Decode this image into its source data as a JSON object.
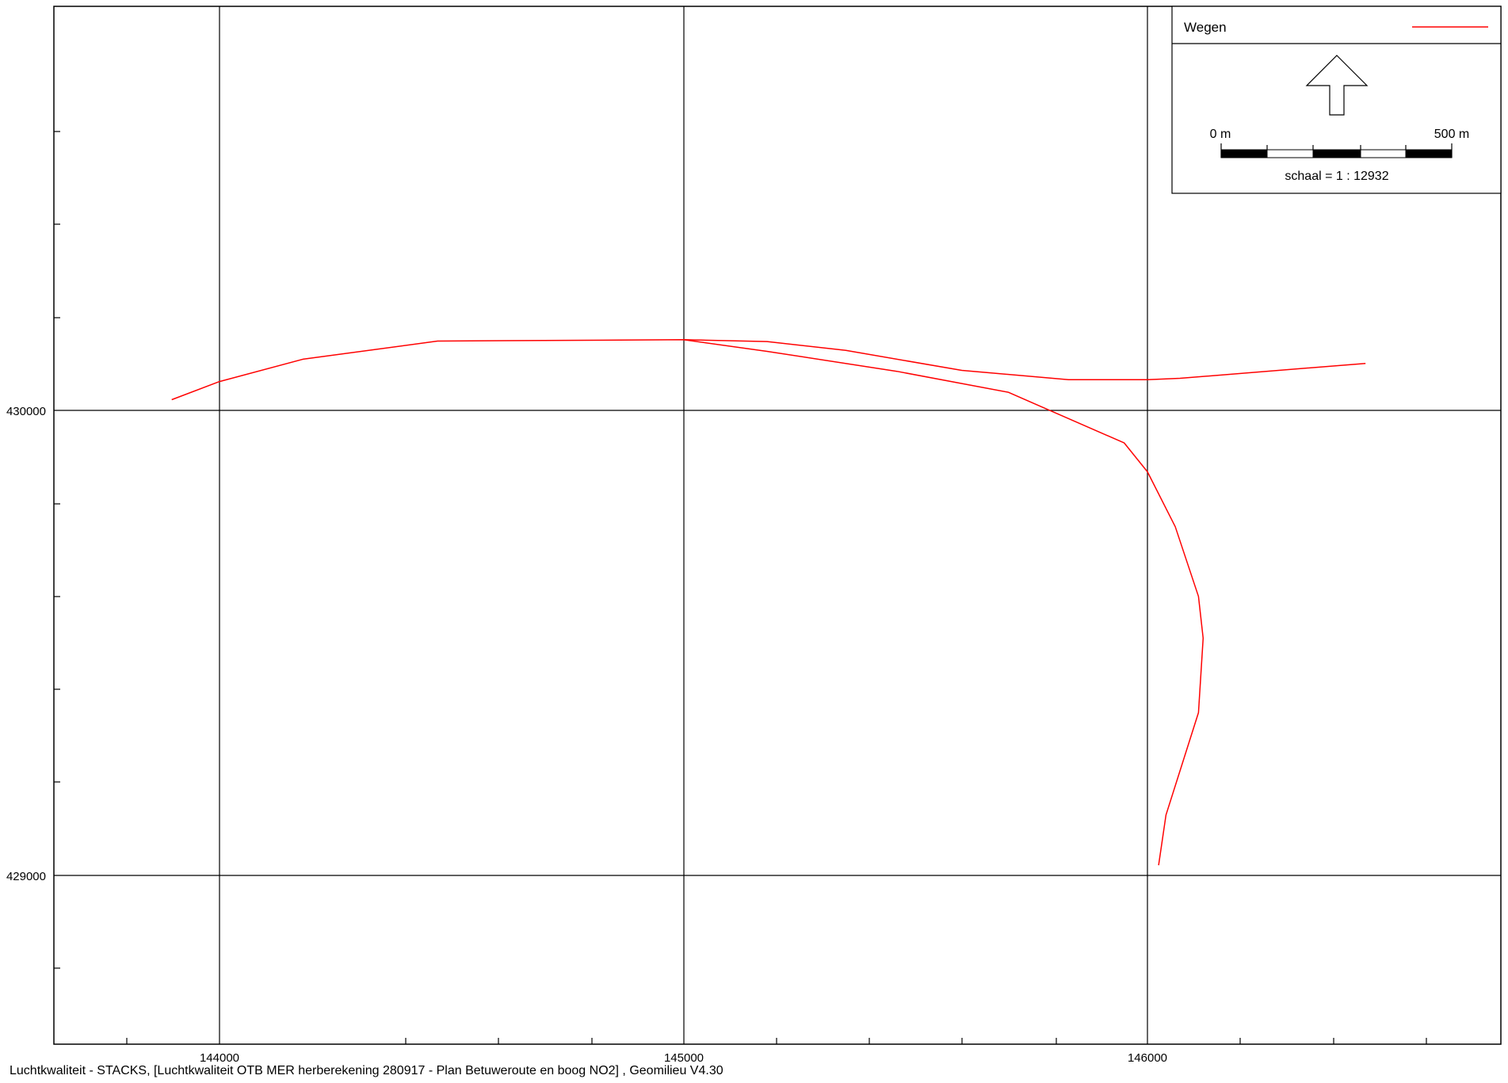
{
  "legend": {
    "layer_name": "Wegen",
    "layer_color": "#ff0000"
  },
  "north_arrow": {
    "icon": "north-arrow-icon"
  },
  "scale_bar": {
    "start_label": "0 m",
    "end_label": "500 m",
    "scale_text": "schaal = 1 : 12932"
  },
  "axes": {
    "x_labels": [
      "144000",
      "145000",
      "146000"
    ],
    "y_labels": [
      "430000",
      "429000"
    ]
  },
  "footer": {
    "caption": "Luchtkwaliteit - STACKS, [Luchtkwaliteit OTB MER herberekening 280917 - Plan Betuweroute en boog  NO2] , Geomilieu V4.30"
  },
  "colors": {
    "road": "#ff0000",
    "grid": "#000000",
    "background": "#ffffff"
  },
  "roads": [
    {
      "name": "main-road",
      "points": [
        [
          143897,
          430023
        ],
        [
          144000,
          430062
        ],
        [
          144180,
          430110
        ],
        [
          144470,
          430149
        ],
        [
          145000,
          430152
        ],
        [
          145180,
          430148
        ],
        [
          145350,
          430129
        ],
        [
          145600,
          430086
        ],
        [
          145830,
          430066
        ],
        [
          146000,
          430066
        ],
        [
          146070,
          430069
        ],
        [
          146470,
          430101
        ]
      ]
    },
    {
      "name": "curve-road",
      "points": [
        [
          145000,
          430152
        ],
        [
          145180,
          430127
        ],
        [
          145460,
          430084
        ],
        [
          145700,
          430039
        ],
        [
          145950,
          429930
        ],
        [
          146000,
          429868
        ],
        [
          146060,
          429750
        ],
        [
          146110,
          429600
        ],
        [
          146120,
          429510
        ],
        [
          146110,
          429350
        ],
        [
          146040,
          429130
        ],
        [
          146024,
          429022
        ]
      ]
    }
  ]
}
